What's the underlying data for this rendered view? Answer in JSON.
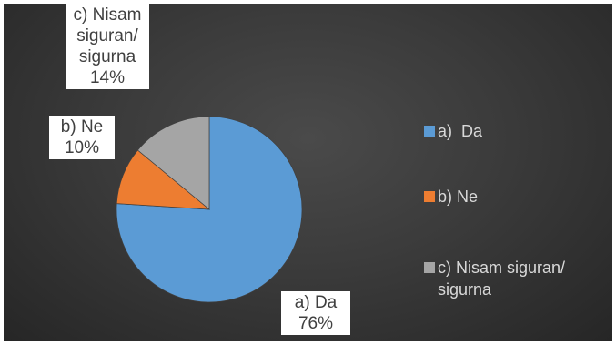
{
  "colors": {
    "background_dark": "#262626",
    "background_light": "#4a4a4a",
    "slice_a": "#5B9BD5",
    "slice_b": "#ED7D31",
    "slice_c": "#A5A5A5",
    "label_bg": "#FFFFFF",
    "label_text": "#404040",
    "legend_text": "#D9D9D9"
  },
  "chart_data": {
    "type": "pie",
    "title": "",
    "legend_position": "right",
    "start_angle_deg": 0,
    "direction": "clockwise",
    "slices": [
      {
        "key": "a",
        "label": "a)  Da",
        "value": 76,
        "percent_text": "76%",
        "color": "#5B9BD5",
        "label_lines": [
          "a)  Da",
          "76%"
        ]
      },
      {
        "key": "b",
        "label": "b) Ne",
        "value": 10,
        "percent_text": "10%",
        "color": "#ED7D31",
        "label_lines": [
          "b) Ne",
          "10%"
        ]
      },
      {
        "key": "c",
        "label": "c) Nisam siguran/ sigurna",
        "value": 14,
        "percent_text": "14%",
        "color": "#A5A5A5",
        "label_lines": [
          "c) Nisam",
          "siguran/",
          "sigurna",
          "14%"
        ]
      }
    ]
  },
  "legend": {
    "items": [
      {
        "text": "a)  Da",
        "color": "#5B9BD5"
      },
      {
        "text": "b) Ne",
        "color": "#ED7D31"
      },
      {
        "text": "c) Nisam siguran/\nsigurna",
        "color": "#A5A5A5"
      }
    ]
  },
  "labels": {
    "a": {
      "line1": "a)  Da",
      "line2": "76%"
    },
    "b": {
      "line1": "b) Ne",
      "line2": "10%"
    },
    "c": {
      "line1": "c) Nisam",
      "line2": "siguran/",
      "line3": "sigurna",
      "line4": "14%"
    }
  }
}
